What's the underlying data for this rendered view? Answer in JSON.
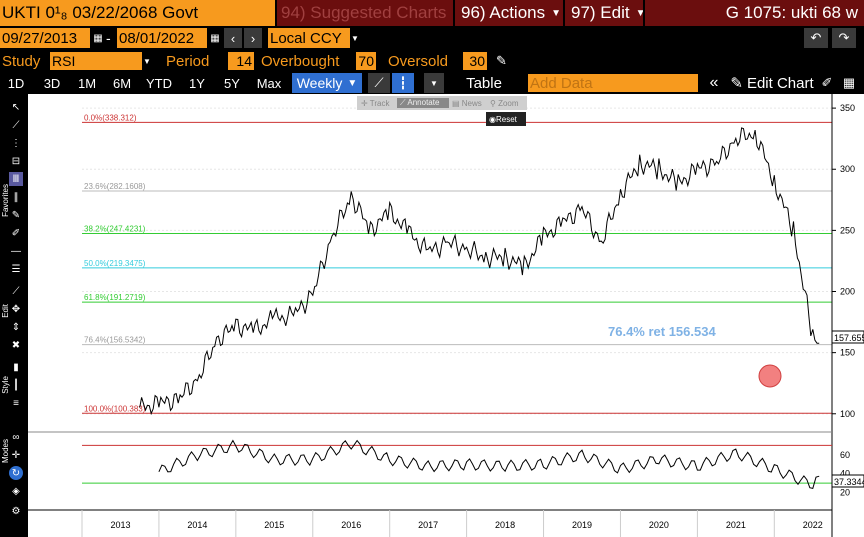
{
  "header": {
    "security": "UKTI 0¹₈ 03/22/2068 Govt",
    "menu_suggested": "94) Suggested Charts",
    "menu_actions": "96) Actions",
    "menu_edit": "97) Edit",
    "chart_id": "G 1075: ukti 68 w"
  },
  "dates": {
    "start": "09/27/2013",
    "end": "08/01/2022",
    "currency": "Local CCY"
  },
  "study": {
    "label": "Study",
    "name": "RSI",
    "period_label": "Period",
    "period": "14",
    "overbought_label": "Overbought",
    "overbought": "70",
    "oversold_label": "Oversold",
    "oversold": "30"
  },
  "toolbar": {
    "ranges": [
      "1D",
      "3D",
      "1M",
      "6M",
      "YTD",
      "1Y",
      "5Y",
      "Max"
    ],
    "frequency": "Weekly",
    "table": "Table",
    "add_data": "Add Data",
    "edit_chart": "Edit Chart"
  },
  "popup": {
    "track": "Track",
    "annotate": "Annotate",
    "news": "News",
    "zoom": "Zoom",
    "reset": "Reset"
  },
  "sidebar": {
    "favorites": "Favorites",
    "edit": "Edit",
    "style": "Style",
    "modes": "Modes"
  },
  "chart_data": {
    "type": "line",
    "price": {
      "x": [
        "2013-10",
        "2014-01",
        "2014-04",
        "2014-07",
        "2014-10",
        "2015-01",
        "2015-04",
        "2015-07",
        "2015-10",
        "2016-01",
        "2016-04",
        "2016-07",
        "2016-10",
        "2017-01",
        "2017-04",
        "2017-07",
        "2017-10",
        "2018-01",
        "2018-04",
        "2018-07",
        "2018-10",
        "2019-01",
        "2019-04",
        "2019-07",
        "2019-10",
        "2020-01",
        "2020-04",
        "2020-07",
        "2020-10",
        "2021-01",
        "2021-04",
        "2021-07",
        "2021-10",
        "2022-01",
        "2022-04",
        "2022-07",
        "2022-08"
      ],
      "y": [
        105,
        108,
        112,
        128,
        160,
        172,
        168,
        178,
        180,
        198,
        245,
        278,
        250,
        265,
        248,
        232,
        240,
        235,
        228,
        228,
        220,
        245,
        256,
        268,
        240,
        280,
        305,
        300,
        288,
        300,
        305,
        325,
        330,
        290,
        250,
        162,
        157.655
      ],
      "last": "157.655"
    },
    "price_axis": {
      "ticks": [
        "350",
        "300",
        "250",
        "200",
        "150",
        "100"
      ],
      "min": 90,
      "max": 355
    },
    "fib_levels": [
      {
        "label": "0.0%(338.312)",
        "value": 338.312,
        "color": "#cc3333"
      },
      {
        "label": "23.6%(282.1608)",
        "value": 282.1608,
        "color": "#bbbbbb"
      },
      {
        "label": "38.2%(247.4231)",
        "value": 247.4231,
        "color": "#33cc33"
      },
      {
        "label": "50.0%(219.3475)",
        "value": 219.3475,
        "color": "#33ccdd"
      },
      {
        "label": "61.8%(191.2719)",
        "value": 191.2719,
        "color": "#33cc33"
      },
      {
        "label": "76.4%(156.5342)",
        "value": 156.5342,
        "color": "#bbbbbb"
      },
      {
        "label": "100.0%(100.383)",
        "value": 100.383,
        "color": "#cc3333"
      }
    ],
    "annotation": "76.4% ret 156.534",
    "rsi": {
      "x": [
        "2014-01",
        "2014-07",
        "2015-01",
        "2015-07",
        "2016-01",
        "2016-07",
        "2017-01",
        "2017-07",
        "2018-01",
        "2018-07",
        "2019-01",
        "2019-07",
        "2020-01",
        "2020-07",
        "2021-01",
        "2021-07",
        "2022-01",
        "2022-07",
        "2022-08"
      ],
      "y": [
        42,
        60,
        70,
        55,
        55,
        72,
        55,
        48,
        50,
        48,
        50,
        60,
        45,
        55,
        48,
        62,
        45,
        28,
        37.3344
      ],
      "last": "37.3344",
      "overbought": 70,
      "oversold": 30,
      "ticks": [
        "60",
        "40",
        "20"
      ]
    },
    "x_ticks": [
      "2013",
      "2014",
      "2015",
      "2016",
      "2017",
      "2018",
      "2019",
      "2020",
      "2021",
      "2022"
    ],
    "colors": {
      "price": "#000000",
      "overbought": "#cc3333",
      "oversold": "#33cc33",
      "annotation": "#7fb2e5"
    }
  }
}
